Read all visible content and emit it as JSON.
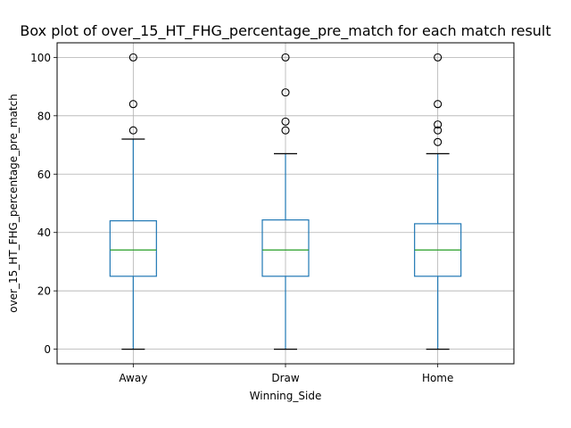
{
  "chart_data": {
    "type": "box",
    "title": "Box plot of over_15_HT_FHG_percentage_pre_match for each match result",
    "xlabel": "Winning_Side",
    "ylabel": "over_15_HT_FHG_percentage_pre_match",
    "categories": [
      "Away",
      "Draw",
      "Home"
    ],
    "ylim": [
      -5,
      105
    ],
    "yticks": [
      0,
      20,
      40,
      60,
      80,
      100
    ],
    "grid": true,
    "boxes": [
      {
        "category": "Away",
        "whisker_low": 0,
        "q1": 25,
        "median": 34,
        "q3": 44,
        "whisker_high": 72,
        "outliers": [
          75,
          84,
          100
        ]
      },
      {
        "category": "Draw",
        "whisker_low": 0,
        "q1": 25,
        "median": 34,
        "q3": 44.3,
        "whisker_high": 67,
        "outliers": [
          75,
          78,
          88,
          100
        ]
      },
      {
        "category": "Home",
        "whisker_low": 0,
        "q1": 25,
        "median": 34,
        "q3": 43,
        "whisker_high": 67,
        "outliers": [
          71,
          75,
          77,
          84,
          100
        ]
      }
    ],
    "colors": {
      "box": "#1f77b4",
      "median": "#2ca02c",
      "whisker_cap": "#000000",
      "grid": "#b0b0b0"
    }
  }
}
